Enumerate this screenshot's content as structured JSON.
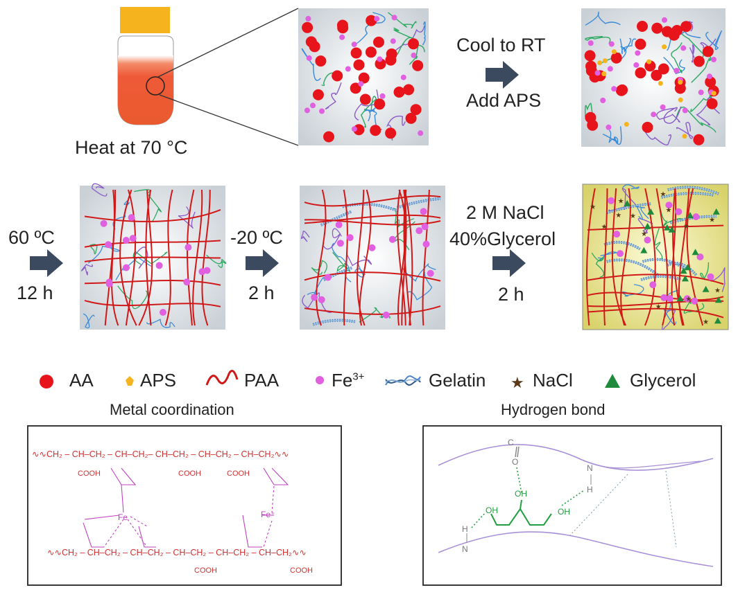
{
  "steps": {
    "heat": "Heat at 70 °C",
    "cool": "Cool to RT",
    "add": "Add APS",
    "s1_temp": "60 ºC",
    "s1_time": "12 h",
    "s2_temp": "-20 ºC",
    "s2_time": "2 h",
    "s3_salt": "2 M NaCl",
    "s3_gly": "40%Glycerol",
    "s3_time": "2 h"
  },
  "legend": {
    "aa": "AA",
    "aps": "APS",
    "paa": "PAA",
    "fe": "Fe",
    "fe_sup": "3+",
    "gelatin": "Gelatin",
    "nacl": "NaCl",
    "glycerol": "Glycerol"
  },
  "panels": {
    "metal_title": "Metal coordination",
    "hbond_title": "Hydrogen bond"
  },
  "chem": {
    "top_chain": "∿∿CH₂ – CH–CH₂ – CH–CH₂– CH–CH₂ – CH–CH₂ – CH–CH₂∿∿",
    "bot_chain": "∿∿CH₂ – CH–CH₂ – CH–CH₂ – CH–CH₂ – CH–CH₂ – CH–CH₂∿∿",
    "cooh": "COOH",
    "fe": "Fe",
    "fe_plus": "Fe⁺",
    "o": "O",
    "c": "C",
    "oh": "OH",
    "n": "N",
    "h": "H"
  },
  "colors": {
    "aa": "#e8141c",
    "aps": "#f5b41e",
    "fe": "#e060e0",
    "paa": "#d01818",
    "gelatin": "#4a86c8",
    "nacl": "#5a3a1a",
    "glycerol": "#1e8a3c",
    "arrow": "#3b4a5e",
    "chem_red": "#d03030",
    "chem_mag": "#c040c0",
    "chem_green": "#20a040",
    "chem_purple": "#a890d8"
  }
}
